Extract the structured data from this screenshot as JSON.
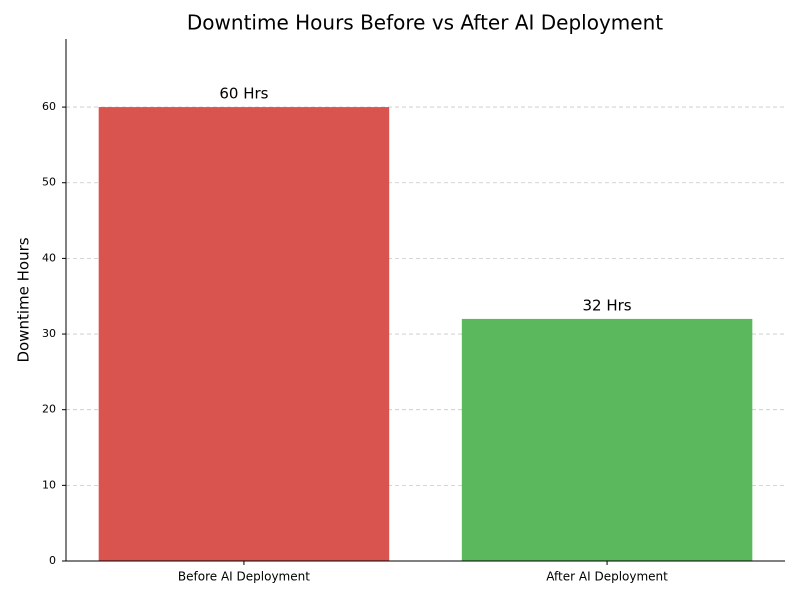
{
  "chart_data": {
    "type": "bar",
    "title": "Downtime Hours Before vs After AI Deployment",
    "y_label": "Downtime Hours",
    "categories": [
      "Before AI Deployment",
      "After AI Deployment"
    ],
    "values": [
      60,
      32
    ],
    "value_labels": [
      "60 Hrs",
      "32 Hrs"
    ],
    "colors": [
      "#d9534f",
      "#5cb85c"
    ],
    "ylim": [
      0,
      69
    ],
    "yticks": [
      0,
      10,
      20,
      30,
      40,
      50,
      60
    ],
    "grid": true
  }
}
